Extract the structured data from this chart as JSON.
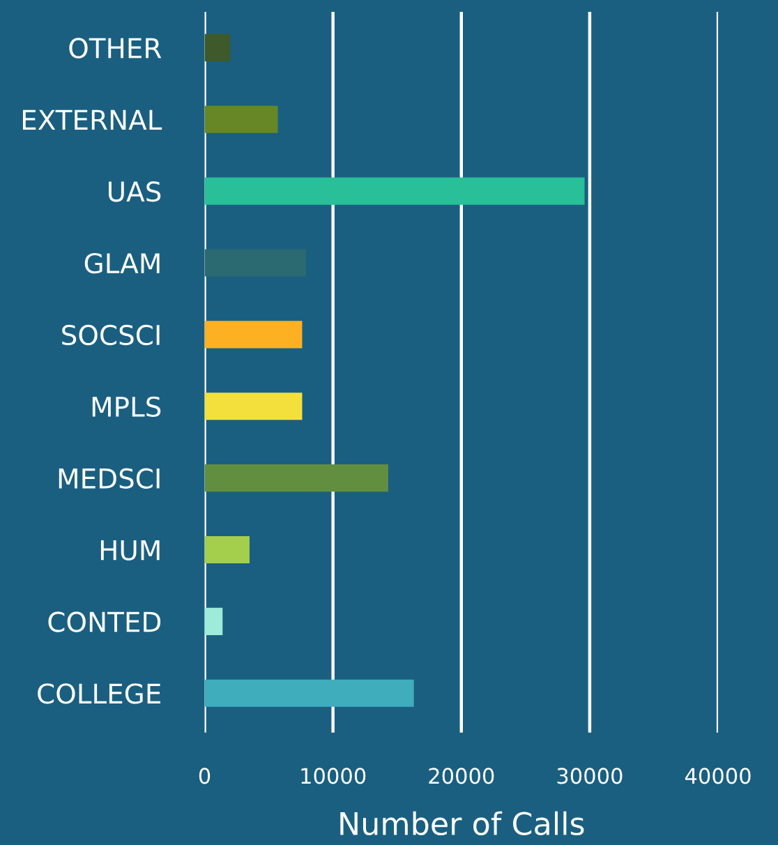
{
  "chart_data": {
    "type": "bar",
    "orientation": "horizontal",
    "xlabel": "Number of Calls",
    "categories": [
      "OTHER",
      "EXTERNAL",
      "UAS",
      "GLAM",
      "SOCSCI",
      "MPLS",
      "MEDSCI",
      "HUM",
      "CONTED",
      "COLLEGE"
    ],
    "values": [
      2000,
      5700,
      29600,
      7900,
      7600,
      7600,
      14300,
      3500,
      1400,
      16300
    ],
    "colors": [
      "#3e5a2a",
      "#678727",
      "#29bf98",
      "#2c6a71",
      "#fdb021",
      "#f4e03c",
      "#628f3f",
      "#a3cf4d",
      "#9debd8",
      "#40adbc"
    ],
    "xlim": [
      0,
      40000
    ],
    "xticks": [
      0,
      10000,
      20000,
      30000,
      40000
    ],
    "grid": "x"
  }
}
